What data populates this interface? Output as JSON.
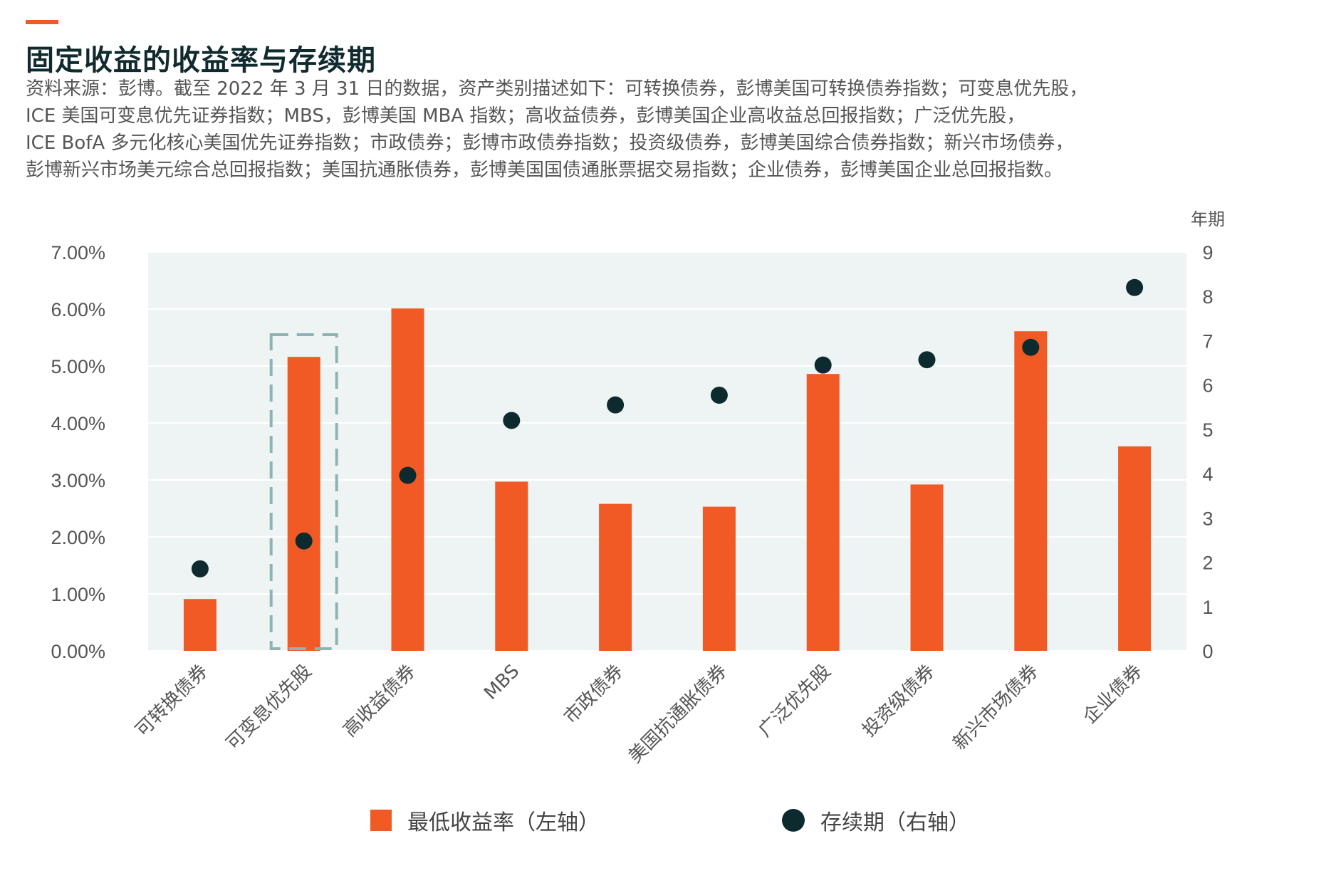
{
  "header": {
    "title": "固定收益的收益率与存续期",
    "source_lines": [
      "资料来源：彭博。截至 2022 年 3 月 31 日的数据，资产类别描述如下：可转换债券，彭博美国可转换债券指数；可变息优先股，",
      "ICE 美国可变息优先证券指数；MBS，彭博美国 MBA 指数；高收益债券，彭博美国企业高收益总回报指数；广泛优先股，",
      "ICE BofA 多元化核心美国优先证券指数；市政债券；彭博市政债券指数；投资级债券，彭博美国综合债券指数；新兴市场债券，",
      "彭博新兴市场美元综合总回报指数；美国抗通胀债券，彭博美国国债通胀票据交易指数；企业债券，彭博美国企业总回报指数。"
    ]
  },
  "chart_data": {
    "type": "bar",
    "title": "固定收益的收益率与存续期",
    "categories": [
      "可转换债券",
      "可变息优先股",
      "高收益债券",
      "MBS",
      "市政债券",
      "美国抗通胀债券",
      "广泛优先股",
      "投资级债券",
      "新兴市场债券",
      "企业债券"
    ],
    "series": [
      {
        "name": "最低收益率（左轴）",
        "type": "bar",
        "axis": "left",
        "color": "#f15a24",
        "values": [
          0.91,
          5.16,
          6.01,
          2.97,
          2.58,
          2.53,
          4.86,
          2.92,
          5.61,
          3.59
        ]
      },
      {
        "name": "存续期（右轴）",
        "type": "scatter",
        "axis": "right",
        "color": "#0d2b2e",
        "values": [
          1.85,
          2.48,
          3.96,
          5.2,
          5.55,
          5.77,
          6.45,
          6.57,
          6.85,
          8.2
        ]
      }
    ],
    "y_left": {
      "ylim": [
        0,
        7
      ],
      "ticks": [
        "0.00%",
        "1.00%",
        "2.00%",
        "3.00%",
        "4.00%",
        "5.00%",
        "6.00%",
        "7.00%"
      ]
    },
    "y_right": {
      "label": "年期",
      "ylim": [
        0,
        9
      ],
      "ticks": [
        "0",
        "1",
        "2",
        "3",
        "4",
        "5",
        "6",
        "7",
        "8",
        "9"
      ]
    },
    "highlight_category": "可变息优先股",
    "highlight_color": "#8fb3b3",
    "plot_background": "#eef4f4",
    "grid": true,
    "legend_position": "bottom"
  },
  "legend": {
    "bar_label": "最低收益率（左轴）",
    "dot_label": "存续期（右轴）"
  }
}
